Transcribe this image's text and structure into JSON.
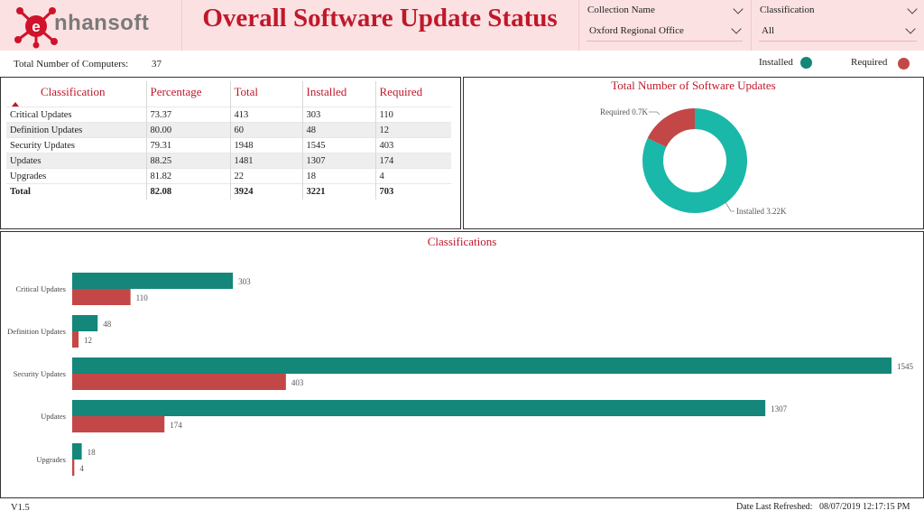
{
  "header": {
    "logo_text": "nhansoft",
    "title": "Overall Software Update Status",
    "slicers": [
      {
        "label": "Collection Name",
        "value": "Oxford Regional Office"
      },
      {
        "label": "Classification",
        "value": "All"
      }
    ]
  },
  "summary": {
    "total_computers_label": "Total Number of Computers:",
    "total_computers_value": "37"
  },
  "legend": {
    "installed_label": "Installed",
    "required_label": "Required",
    "installed_color": "#14877a",
    "required_color": "#c44747"
  },
  "table": {
    "headers": [
      "Classification",
      "Percentage",
      "Total",
      "Installed",
      "Required"
    ],
    "rows": [
      [
        "Critical Updates",
        "73.37",
        "413",
        "303",
        "110"
      ],
      [
        "Definition Updates",
        "80.00",
        "60",
        "48",
        "12"
      ],
      [
        "Security Updates",
        "79.31",
        "1948",
        "1545",
        "403"
      ],
      [
        "Updates",
        "88.25",
        "1481",
        "1307",
        "174"
      ],
      [
        "Upgrades",
        "81.82",
        "22",
        "18",
        "4"
      ]
    ],
    "total_row": [
      "Total",
      "82.08",
      "3924",
      "3221",
      "703"
    ]
  },
  "donut": {
    "title": "Total Number of Software Updates",
    "required_label": "Required 0.7K",
    "installed_label": "Installed 3.22K",
    "installed_color": "#1ab8a8",
    "required_color": "#c44747"
  },
  "bars": {
    "title": "Classifications"
  },
  "chart_data": {
    "type": "bar",
    "title": "Classifications",
    "orientation": "horizontal",
    "categories": [
      "Critical Updates",
      "Definition Updates",
      "Security Updates",
      "Updates",
      "Upgrades"
    ],
    "series": [
      {
        "name": "Installed",
        "values": [
          303,
          48,
          1545,
          1307,
          18
        ],
        "color": "#14877a"
      },
      {
        "name": "Required",
        "values": [
          110,
          12,
          403,
          174,
          4
        ],
        "color": "#c44747"
      }
    ],
    "xlim": [
      0,
      1545
    ],
    "grid": false,
    "donut": {
      "type": "pie",
      "title": "Total Number of Software Updates",
      "labels": [
        "Installed",
        "Required"
      ],
      "values": [
        3221,
        703
      ]
    }
  },
  "footer": {
    "version": "V1.5",
    "refresh_label": "Date Last Refreshed:",
    "refresh_value": "08/07/2019 12:17:15 PM"
  }
}
